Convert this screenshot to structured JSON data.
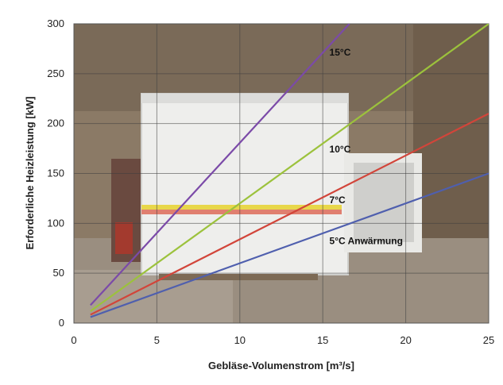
{
  "chart_data": {
    "type": "line",
    "title": "",
    "xlabel": "Gebläse-Volumenstrom [m³/s]",
    "ylabel": "Erforderliche Heizleistung [kW]",
    "xlim": [
      0,
      25
    ],
    "ylim": [
      0,
      300
    ],
    "xticks": [
      0,
      5,
      10,
      15,
      20,
      25
    ],
    "yticks": [
      0,
      50,
      100,
      150,
      200,
      250,
      300
    ],
    "grid": true,
    "series": [
      {
        "name": "15°C",
        "label": "15°C",
        "color": "#7b4aa8",
        "x": [
          1,
          16.6
        ],
        "y": [
          18,
          300
        ]
      },
      {
        "name": "10°C",
        "label": "10°C",
        "color": "#9cc23c",
        "x": [
          1,
          25
        ],
        "y": [
          12,
          300
        ]
      },
      {
        "name": "7°C",
        "label": "7°C",
        "color": "#d2453a",
        "x": [
          1,
          25
        ],
        "y": [
          8.4,
          210
        ]
      },
      {
        "name": "5°C Anwärmung",
        "label": "5°C Anwärmung",
        "color": "#4f5fae",
        "x": [
          1,
          25
        ],
        "y": [
          6,
          150
        ]
      }
    ]
  }
}
